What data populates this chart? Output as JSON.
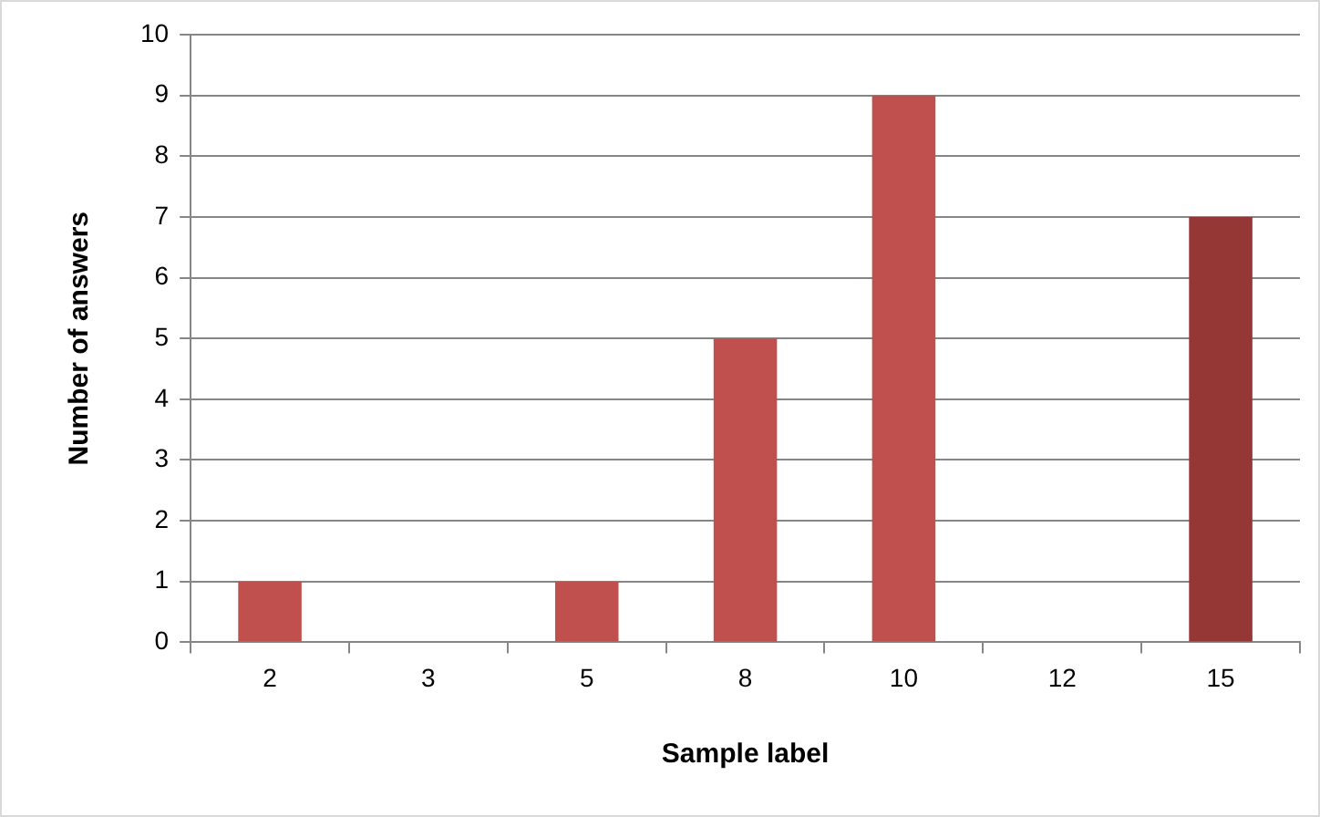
{
  "chart_data": {
    "type": "bar",
    "xlabel": "Sample label",
    "ylabel": "Number of answers",
    "categories": [
      "2",
      "3",
      "5",
      "8",
      "10",
      "12",
      "15"
    ],
    "values": [
      1,
      0,
      1,
      5,
      9,
      0,
      7
    ],
    "colors": [
      "#c0504d",
      "#c0504d",
      "#c0504d",
      "#c0504d",
      "#c0504d",
      "#c0504d",
      "#953735"
    ],
    "ylim": [
      0,
      10
    ],
    "yticks": [
      0,
      1,
      2,
      3,
      4,
      5,
      6,
      7,
      8,
      9,
      10
    ],
    "grid": "y",
    "legend": false
  }
}
